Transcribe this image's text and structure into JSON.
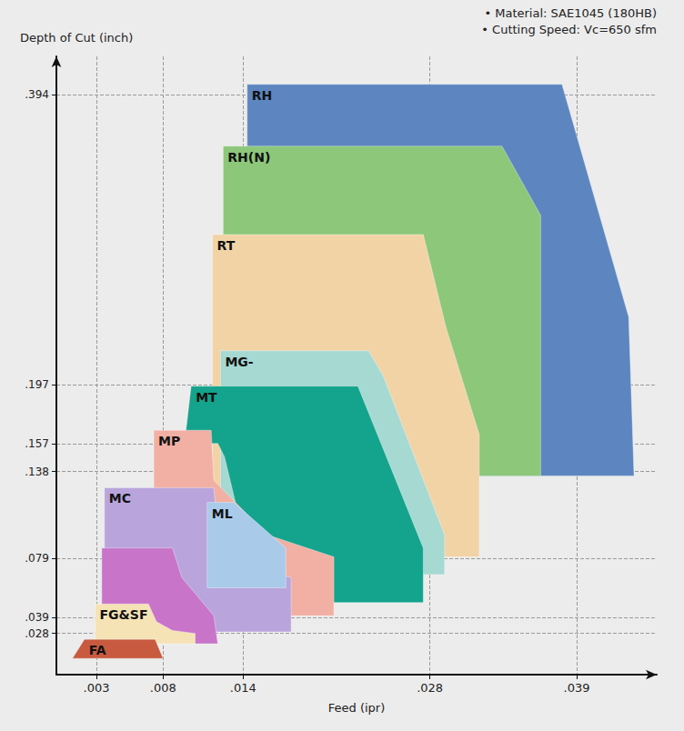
{
  "chart_data": {
    "type": "polygon",
    "annotations": [
      "• Material: SAE1045 (180HB)",
      "• Cutting Speed: Vc=650 sfm"
    ],
    "x_label": "Feed (ipr)",
    "y_label": "Depth of Cut (inch)",
    "xlim": [
      0,
      0.045
    ],
    "ylim": [
      0,
      0.42
    ],
    "xticks": [
      {
        "value": 0.003,
        "label": ".003"
      },
      {
        "value": 0.008,
        "label": ".008"
      },
      {
        "value": 0.014,
        "label": ".014"
      },
      {
        "value": 0.028,
        "label": ".028"
      },
      {
        "value": 0.039,
        "label": ".039"
      }
    ],
    "yticks": [
      {
        "value": 0.028,
        "label": ".028"
      },
      {
        "value": 0.039,
        "label": ".039"
      },
      {
        "value": 0.079,
        "label": ".079"
      },
      {
        "value": 0.138,
        "label": ".138"
      },
      {
        "value": 0.157,
        "label": ".157"
      },
      {
        "value": 0.197,
        "label": ".197"
      },
      {
        "value": 0.394,
        "label": ".394"
      }
    ],
    "grid": true,
    "regions": [
      {
        "name": "RH",
        "color": "#5d86c0",
        "polygons": [
          [
            [
              0.0143,
              0.401
            ],
            [
              0.0379,
              0.401
            ],
            [
              0.0429,
              0.243
            ],
            [
              0.0433,
              0.135
            ],
            [
              0.0143,
              0.135
            ]
          ]
        ]
      },
      {
        "name": "RH(N)",
        "color": "#8cc77a",
        "polygons": [
          [
            [
              0.0125,
              0.359
            ],
            [
              0.0334,
              0.359
            ],
            [
              0.0363,
              0.312
            ],
            [
              0.0363,
              0.135
            ],
            [
              0.0125,
              0.135
            ]
          ]
        ]
      },
      {
        "name": "RT",
        "color": "#f2d3a6",
        "polygons": [
          [
            [
              0.0117,
              0.299
            ],
            [
              0.0275,
              0.299
            ],
            [
              0.0292,
              0.236
            ],
            [
              0.0317,
              0.163
            ],
            [
              0.0317,
              0.08
            ],
            [
              0.0117,
              0.08
            ]
          ]
        ]
      },
      {
        "name": "MG-",
        "color": "#a6d9d2",
        "polygons": [
          [
            [
              0.0123,
              0.22
            ],
            [
              0.0234,
              0.22
            ],
            [
              0.0245,
              0.203
            ],
            [
              0.0291,
              0.095
            ],
            [
              0.0291,
              0.068
            ],
            [
              0.0123,
              0.068
            ]
          ]
        ]
      },
      {
        "name": "MT",
        "color": "#14a38c",
        "polygons": [
          [
            [
              0.0096,
              0.157
            ],
            [
              0.0101,
              0.196
            ],
            [
              0.0226,
              0.196
            ],
            [
              0.0275,
              0.086
            ],
            [
              0.0275,
              0.049
            ],
            [
              0.0205,
              0.049
            ],
            [
              0.0162,
              0.077
            ],
            [
              0.0135,
              0.114
            ],
            [
              0.0126,
              0.148
            ],
            [
              0.0121,
              0.157
            ]
          ]
        ]
      },
      {
        "name": "MP",
        "color": "#f2afa3",
        "polygons": [
          [
            [
              0.0073,
              0.166
            ],
            [
              0.0116,
              0.166
            ],
            [
              0.0118,
              0.132
            ],
            [
              0.0158,
              0.095
            ],
            [
              0.0208,
              0.08
            ],
            [
              0.0208,
              0.04
            ],
            [
              0.0073,
              0.04
            ]
          ]
        ]
      },
      {
        "name": "MC",
        "color": "#b9a5dc",
        "polygons": [
          [
            [
              0.0036,
              0.127
            ],
            [
              0.0118,
              0.127
            ],
            [
              0.0123,
              0.077
            ],
            [
              0.0176,
              0.066
            ],
            [
              0.0176,
              0.029
            ],
            [
              0.0036,
              0.029
            ]
          ]
        ]
      },
      {
        "name": "ML",
        "color": "#a9cbe9",
        "polygons": [
          [
            [
              0.0113,
              0.117
            ],
            [
              0.0133,
              0.117
            ],
            [
              0.0172,
              0.086
            ],
            [
              0.0172,
              0.059
            ],
            [
              0.0113,
              0.059
            ]
          ]
        ]
      },
      {
        "name": "FG&SF",
        "colors": [
          "#c874c9",
          "#f6e3b5"
        ],
        "polygons": [
          [
            [
              0.0034,
              0.086
            ],
            [
              0.0087,
              0.086
            ],
            [
              0.0094,
              0.066
            ],
            [
              0.0118,
              0.04
            ],
            [
              0.0121,
              0.021
            ],
            [
              0.0034,
              0.021
            ]
          ],
          [
            [
              0.0029,
              0.048
            ],
            [
              0.0069,
              0.048
            ],
            [
              0.0075,
              0.036
            ],
            [
              0.0087,
              0.03
            ],
            [
              0.0104,
              0.028
            ],
            [
              0.0104,
              0.021
            ],
            [
              0.0029,
              0.021
            ]
          ]
        ]
      },
      {
        "name": "FA",
        "color": "#c85a40",
        "polygons": [
          [
            [
              0.0021,
              0.024
            ],
            [
              0.0074,
              0.024
            ],
            [
              0.008,
              0.011
            ],
            [
              0.0012,
              0.011
            ]
          ]
        ]
      }
    ]
  }
}
